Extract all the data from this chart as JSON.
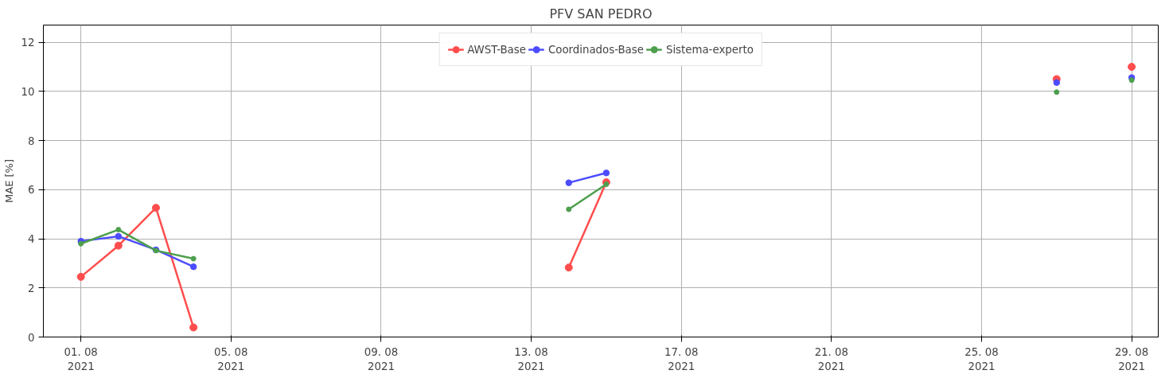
{
  "chart_data": {
    "type": "line",
    "title": "PFV SAN PEDRO",
    "ylabel": "MAE [%]",
    "x": [
      "2021-08-01",
      "2021-08-02",
      "2021-08-03",
      "2021-08-04",
      "2021-08-05",
      "2021-08-14",
      "2021-08-15",
      "2021-08-16",
      "2021-08-27",
      "2021-08-28",
      "2021-08-29"
    ],
    "series": [
      {
        "name": "AWST-Base",
        "color": "#ff4d4d",
        "values": [
          2.45,
          3.72,
          5.26,
          0.39,
          null,
          2.83,
          6.3,
          null,
          10.5,
          null,
          11.0
        ]
      },
      {
        "name": "Coordinados-Base",
        "color": "#4d4dff",
        "values": [
          3.9,
          4.1,
          3.55,
          2.86,
          null,
          6.28,
          6.68,
          null,
          10.36,
          null,
          10.56
        ]
      },
      {
        "name": "Sistema-experto",
        "color": "#4d9f4d",
        "values": [
          3.8,
          4.37,
          3.52,
          3.19,
          null,
          5.2,
          6.22,
          null,
          9.97,
          null,
          10.46
        ]
      }
    ],
    "xlim": [
      "2021-07-31",
      "2021-08-29T17:00"
    ],
    "xticks": [
      {
        "value": "2021-08-01",
        "label": "01. 08\n2021"
      },
      {
        "value": "2021-08-05",
        "label": "05. 08\n2021"
      },
      {
        "value": "2021-08-09",
        "label": "09. 08\n2021"
      },
      {
        "value": "2021-08-13",
        "label": "13. 08\n2021"
      },
      {
        "value": "2021-08-17",
        "label": "17. 08\n2021"
      },
      {
        "value": "2021-08-21",
        "label": "21. 08\n2021"
      },
      {
        "value": "2021-08-25",
        "label": "25. 08\n2021"
      },
      {
        "value": "2021-08-29",
        "label": "29. 08\n2021"
      }
    ],
    "ylim": [
      0,
      12.7
    ],
    "yticks": [
      0,
      2,
      4,
      6,
      8,
      10,
      12
    ],
    "grid": true,
    "legend": "top",
    "marker": "circle",
    "line_style": "solid"
  }
}
